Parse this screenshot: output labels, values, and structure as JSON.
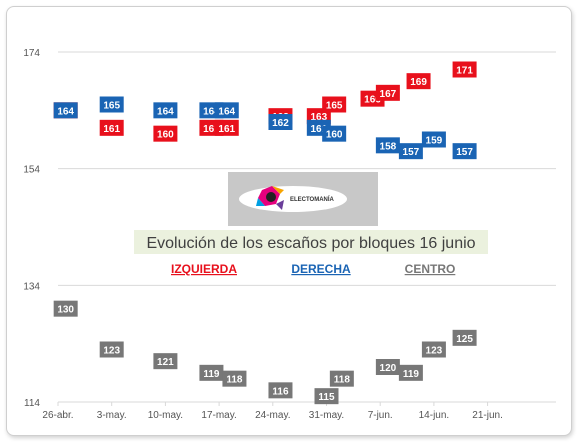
{
  "chart_data": {
    "type": "scatter",
    "title": "Evolución de los escaños por bloques 16 junio",
    "ylim": [
      114,
      174
    ],
    "yticks": [
      114,
      134,
      154,
      174
    ],
    "xticks": [
      "26-abr.",
      "3-may.",
      "10-may.",
      "17-may.",
      "24-may.",
      "31-may.",
      "7-jun.",
      "14-jun.",
      "21-jun."
    ],
    "grid": true,
    "legend_position": "center",
    "series": [
      {
        "name": "IZQUIERDA",
        "color": "#e8101c",
        "points": [
          {
            "x": "27-abr.",
            "y": 164
          },
          {
            "x": "3-may.",
            "y": 161
          },
          {
            "x": "10-may.",
            "y": 160
          },
          {
            "x": "16-may.",
            "y": 161
          },
          {
            "x": "18-may.",
            "y": 161
          },
          {
            "x": "25-may.",
            "y": 163
          },
          {
            "x": "30-may.",
            "y": 163
          },
          {
            "x": "1-jun.",
            "y": 165
          },
          {
            "x": "6-jun.",
            "y": 166
          },
          {
            "x": "8-jun.",
            "y": 167
          },
          {
            "x": "12-jun.",
            "y": 169
          },
          {
            "x": "18-jun.",
            "y": 171
          }
        ]
      },
      {
        "name": "DERECHA",
        "color": "#1a64b4",
        "points": [
          {
            "x": "27-abr.",
            "y": 164
          },
          {
            "x": "3-may.",
            "y": 165
          },
          {
            "x": "10-may.",
            "y": 164
          },
          {
            "x": "16-may.",
            "y": 164
          },
          {
            "x": "18-may.",
            "y": 164
          },
          {
            "x": "25-may.",
            "y": 162
          },
          {
            "x": "30-may.",
            "y": 161
          },
          {
            "x": "1-jun.",
            "y": 160
          },
          {
            "x": "8-jun.",
            "y": 158
          },
          {
            "x": "11-jun.",
            "y": 157
          },
          {
            "x": "14-jun.",
            "y": 159
          },
          {
            "x": "18-jun.",
            "y": 157
          }
        ]
      },
      {
        "name": "CENTRO",
        "color": "#777777",
        "points": [
          {
            "x": "27-abr.",
            "y": 130
          },
          {
            "x": "3-may.",
            "y": 123
          },
          {
            "x": "10-may.",
            "y": 121
          },
          {
            "x": "16-may.",
            "y": 119
          },
          {
            "x": "19-may.",
            "y": 118
          },
          {
            "x": "25-may.",
            "y": 116
          },
          {
            "x": "31-may.",
            "y": 115
          },
          {
            "x": "2-jun.",
            "y": 118
          },
          {
            "x": "8-jun.",
            "y": 120
          },
          {
            "x": "11-jun.",
            "y": 119
          },
          {
            "x": "14-jun.",
            "y": 123
          },
          {
            "x": "18-jun.",
            "y": 125
          }
        ]
      }
    ]
  },
  "logo_text": "ELECTOMANÍA"
}
